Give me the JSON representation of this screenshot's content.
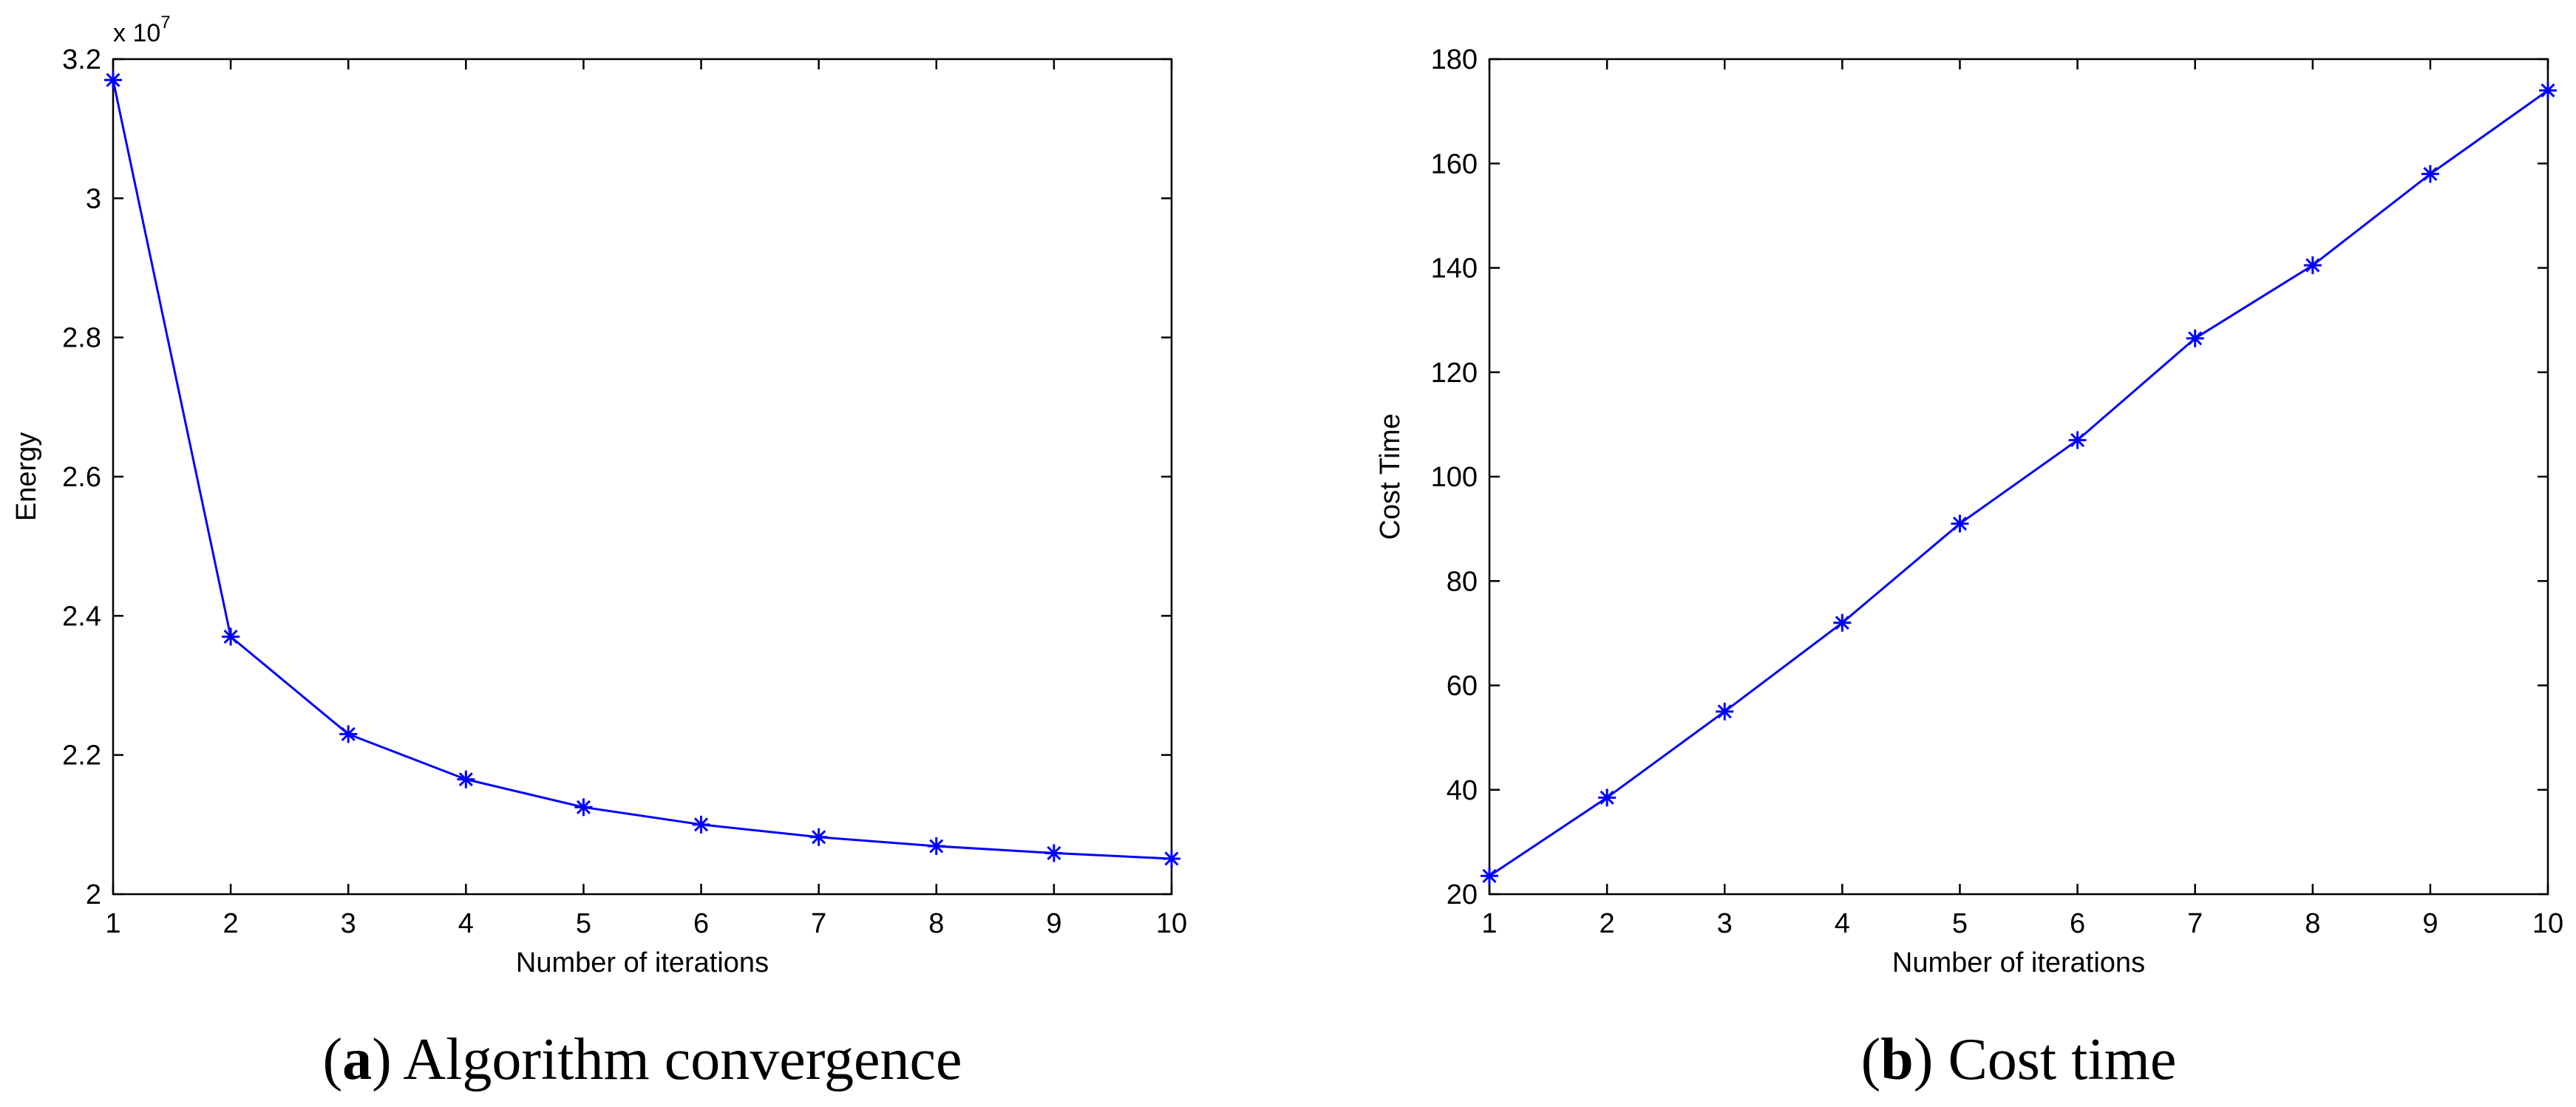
{
  "colors": {
    "series": "#0000ff",
    "axis": "#000000",
    "background": "#ffffff"
  },
  "chart_data": [
    {
      "type": "line",
      "marker": "asterisk",
      "x": [
        1,
        2,
        3,
        4,
        5,
        6,
        7,
        8,
        9,
        10
      ],
      "y": [
        3.17,
        2.37,
        2.23,
        2.165,
        2.125,
        2.1,
        2.082,
        2.069,
        2.059,
        2.051
      ],
      "xlabel": "Number of iterations",
      "ylabel": "Energy",
      "xlim": [
        1,
        10
      ],
      "ylim": [
        2,
        3.2
      ],
      "xticks": [
        "1",
        "2",
        "3",
        "4",
        "5",
        "6",
        "7",
        "8",
        "9",
        "10"
      ],
      "yticks": [
        "2",
        "2.2",
        "2.4",
        "2.6",
        "2.8",
        "3",
        "3.2"
      ],
      "ytick_values": [
        2,
        2.2,
        2.4,
        2.6,
        2.8,
        3,
        3.2
      ],
      "y_multiplier": {
        "base": "x 10",
        "exponent": "7"
      },
      "caption": {
        "label": "a",
        "text": "Algorithm convergence"
      }
    },
    {
      "type": "line",
      "marker": "asterisk",
      "x": [
        1,
        2,
        3,
        4,
        5,
        6,
        7,
        8,
        9,
        10
      ],
      "y": [
        23.5,
        38.5,
        55,
        72,
        91,
        107,
        126.5,
        140.5,
        158,
        174
      ],
      "xlabel": "Number of iterations",
      "ylabel": "Cost Time",
      "xlim": [
        1,
        10
      ],
      "ylim": [
        20,
        180
      ],
      "xticks": [
        "1",
        "2",
        "3",
        "4",
        "5",
        "6",
        "7",
        "8",
        "9",
        "10"
      ],
      "yticks": [
        "20",
        "40",
        "60",
        "80",
        "100",
        "120",
        "140",
        "160",
        "180"
      ],
      "ytick_values": [
        20,
        40,
        60,
        80,
        100,
        120,
        140,
        160,
        180
      ],
      "caption": {
        "label": "b",
        "text": "Cost time"
      }
    }
  ]
}
